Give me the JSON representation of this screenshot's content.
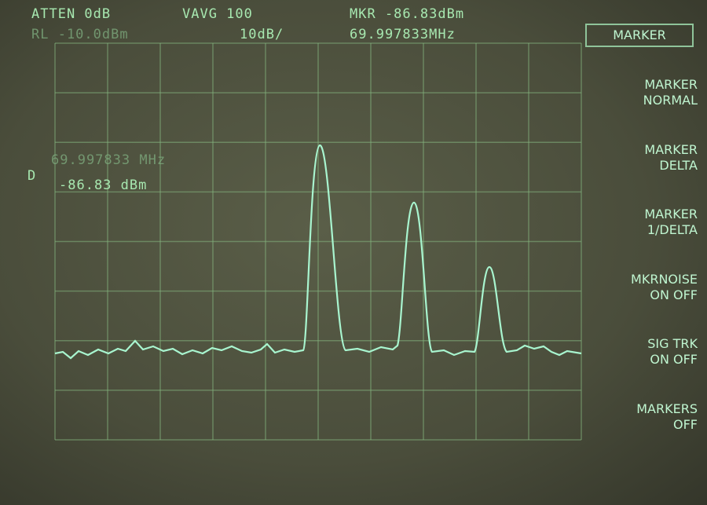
{
  "header": {
    "atten": "ATTEN 0dB",
    "vavg": "VAVG 100",
    "marker": "MKR -86.83dBm",
    "ref_level": "RL -10.0dBm",
    "scale": "10dB/",
    "marker_freq": "69.997833MHz"
  },
  "marker_readout": {
    "label": "D",
    "freq": "69.997833 MHz",
    "level": "-86.83 dBm"
  },
  "softkeys": {
    "title": "MARKER",
    "items": [
      [
        "MARKER",
        "NORMAL"
      ],
      [
        "MARKER",
        "DELTA"
      ],
      [
        "MARKER",
        "1/DELTA"
      ],
      [
        "MKRNOISE",
        "ON OFF"
      ],
      [
        "SIG TRK",
        "ON OFF"
      ],
      [
        "MARKERS",
        "OFF"
      ]
    ]
  }
}
